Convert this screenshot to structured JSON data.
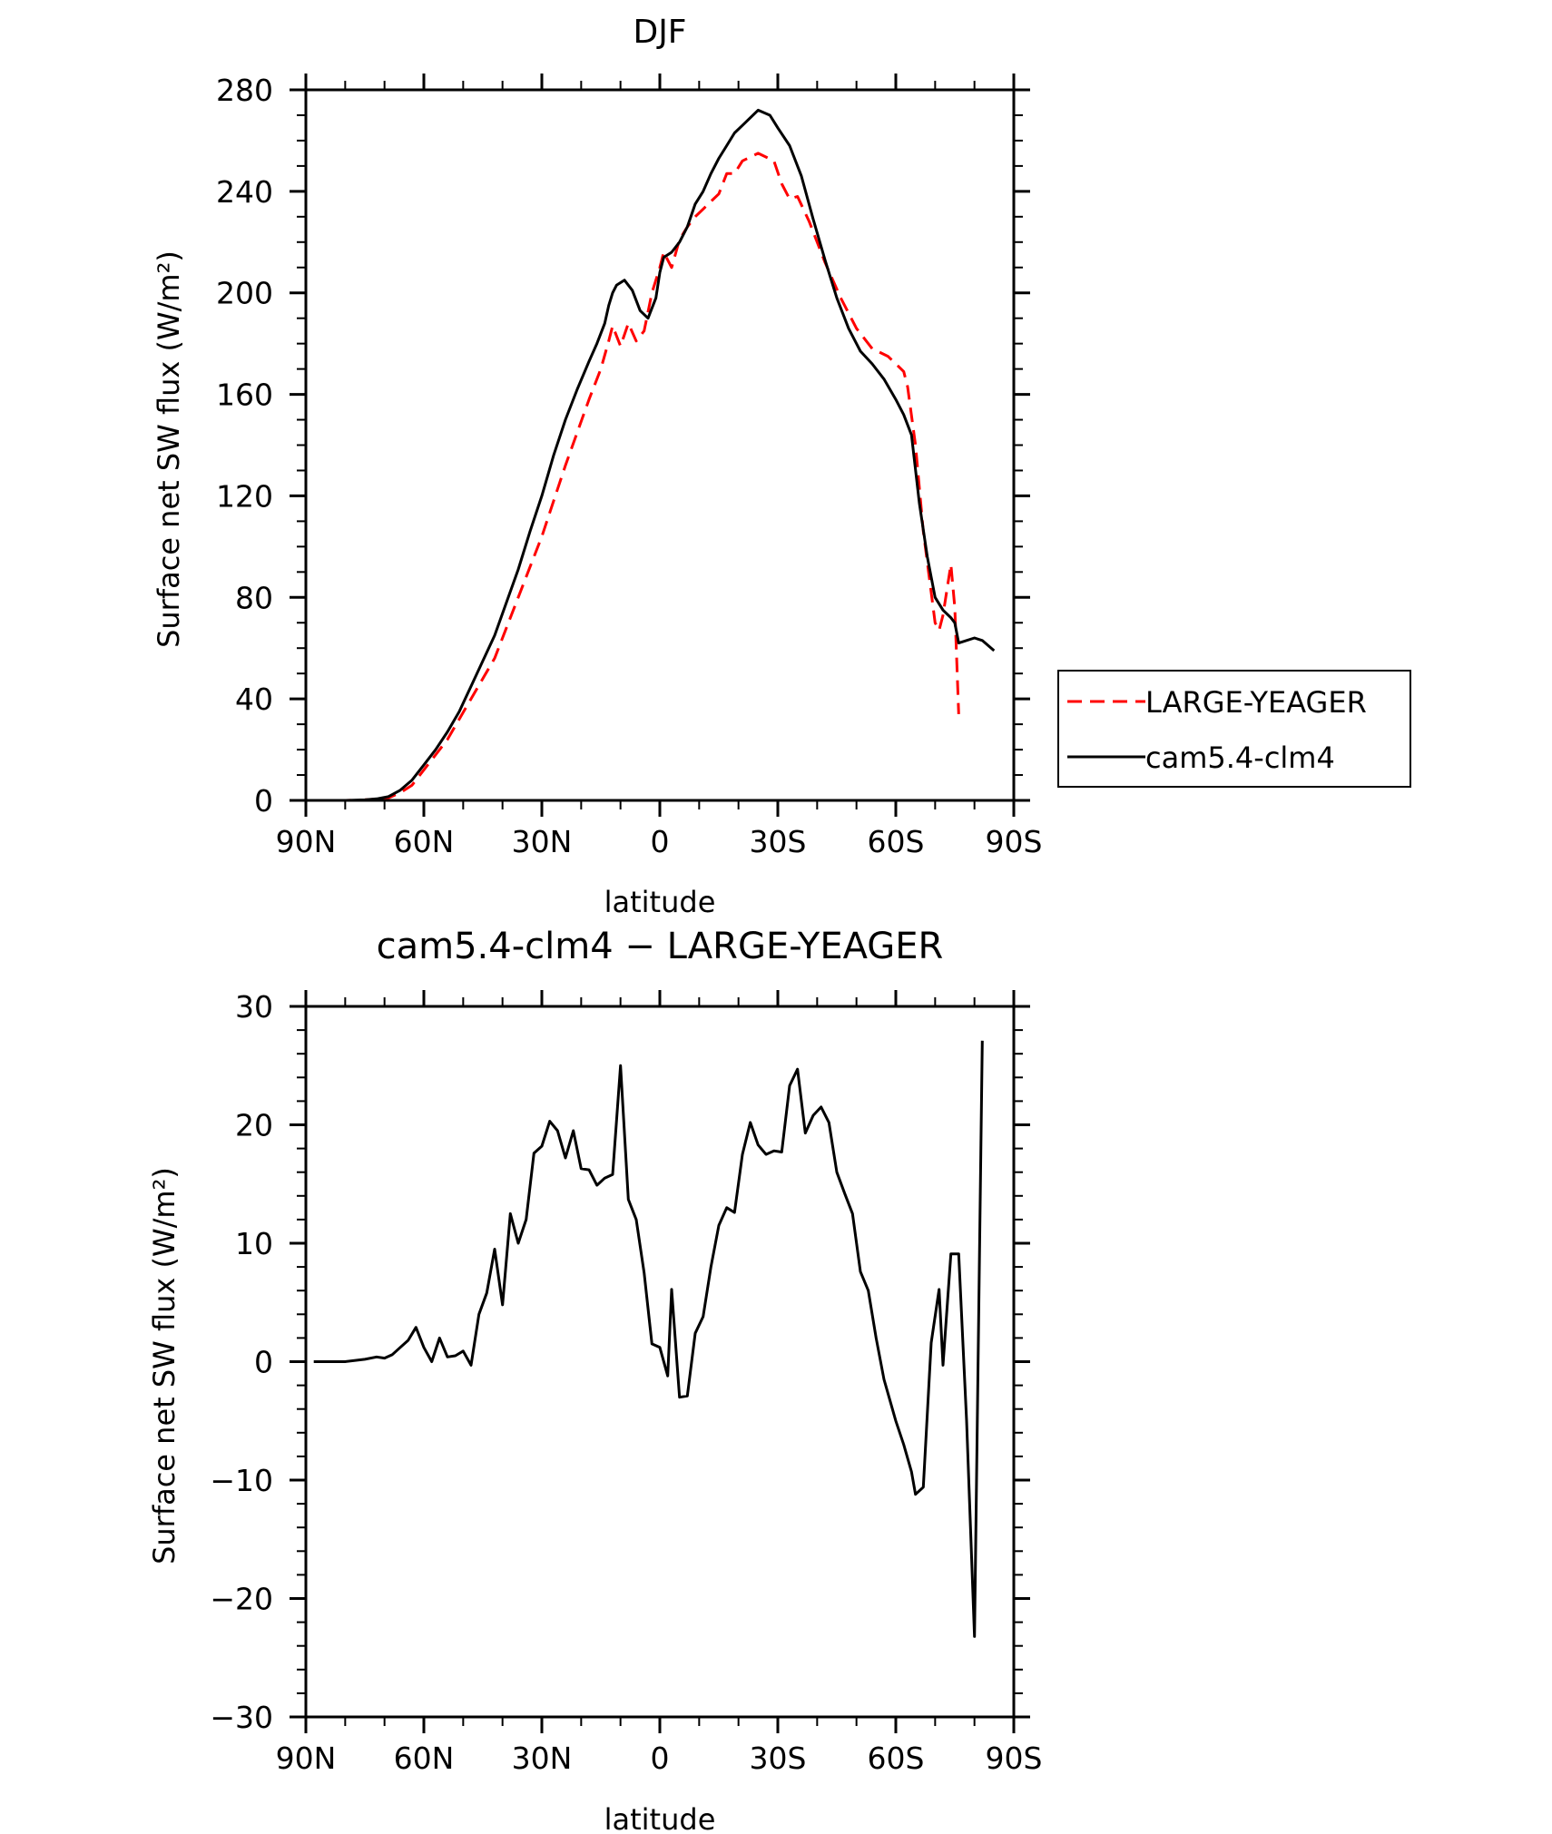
{
  "chart_data": [
    {
      "type": "line",
      "title": "DJF",
      "xlabel": "latitude",
      "ylabel": "Surface net SW flux (W/m²)",
      "xlim": [
        90,
        -90
      ],
      "ylim": [
        0,
        280
      ],
      "x_ticks": [
        {
          "value": 90,
          "label": "90N"
        },
        {
          "value": 60,
          "label": "60N"
        },
        {
          "value": 30,
          "label": "30N"
        },
        {
          "value": 0,
          "label": "0"
        },
        {
          "value": -30,
          "label": "30S"
        },
        {
          "value": -60,
          "label": "60S"
        },
        {
          "value": -90,
          "label": "90S"
        }
      ],
      "y_ticks": [
        0,
        40,
        80,
        120,
        160,
        200,
        240,
        280
      ],
      "grid": false,
      "legend": "outside-right",
      "series": [
        {
          "name": "LARGE-YEAGER",
          "color": "#ff0000",
          "style": "dashed",
          "points": [
            [
              88,
              0
            ],
            [
              80,
              0
            ],
            [
              75,
              0.2
            ],
            [
              72,
              0.5
            ],
            [
              69,
              1
            ],
            [
              66,
              3
            ],
            [
              63,
              6
            ],
            [
              60,
              12
            ],
            [
              57,
              18
            ],
            [
              54,
              24
            ],
            [
              51,
              32
            ],
            [
              48,
              40
            ],
            [
              45,
              48
            ],
            [
              42,
              56
            ],
            [
              39,
              68
            ],
            [
              36,
              80
            ],
            [
              33,
              92
            ],
            [
              30,
              104
            ],
            [
              27,
              118
            ],
            [
              24,
              132
            ],
            [
              21,
              145
            ],
            [
              18,
              158
            ],
            [
              15,
              170
            ],
            [
              13,
              181
            ],
            [
              12,
              187
            ],
            [
              10,
              179
            ],
            [
              8,
              188
            ],
            [
              6,
              181
            ],
            [
              4,
              185
            ],
            [
              2,
              200
            ],
            [
              0,
              210
            ],
            [
              -1,
              216
            ],
            [
              -3,
              210
            ],
            [
              -5,
              221
            ],
            [
              -7,
              226
            ],
            [
              -9,
              230
            ],
            [
              -11,
              233
            ],
            [
              -13,
              236
            ],
            [
              -15,
              239
            ],
            [
              -17,
              247
            ],
            [
              -19,
              247
            ],
            [
              -21,
              252
            ],
            [
              -25,
              255
            ],
            [
              -29,
              252
            ],
            [
              -31,
              243
            ],
            [
              -33,
              237
            ],
            [
              -35,
              238
            ],
            [
              -38,
              228
            ],
            [
              -42,
              212
            ],
            [
              -46,
              198
            ],
            [
              -50,
              186
            ],
            [
              -54,
              178
            ],
            [
              -58,
              175
            ],
            [
              -62,
              169
            ],
            [
              -63,
              163
            ],
            [
              -65,
              140
            ],
            [
              -67,
              106
            ],
            [
              -69,
              82
            ],
            [
              -70,
              70
            ],
            [
              -71,
              67
            ],
            [
              -72,
              73
            ],
            [
              -74,
              93
            ],
            [
              -75,
              76
            ],
            [
              -76,
              34
            ]
          ]
        },
        {
          "name": "cam5.4-clm4",
          "color": "#000000",
          "style": "solid",
          "points": [
            [
              88,
              0
            ],
            [
              80,
              0
            ],
            [
              75,
              0.2
            ],
            [
              72,
              0.6
            ],
            [
              69,
              1.5
            ],
            [
              66,
              4
            ],
            [
              63,
              8
            ],
            [
              60,
              14
            ],
            [
              57,
              20
            ],
            [
              54,
              27
            ],
            [
              51,
              35
            ],
            [
              48,
              45
            ],
            [
              45,
              55
            ],
            [
              42,
              65
            ],
            [
              39,
              78
            ],
            [
              36,
              91
            ],
            [
              33,
              106
            ],
            [
              30,
              120
            ],
            [
              27,
              136
            ],
            [
              24,
              150
            ],
            [
              21,
              162
            ],
            [
              18,
              173
            ],
            [
              16,
              180
            ],
            [
              14,
              188
            ],
            [
              13,
              195
            ],
            [
              12,
              200
            ],
            [
              11,
              203
            ],
            [
              9,
              205
            ],
            [
              7,
              201
            ],
            [
              5,
              193
            ],
            [
              3,
              190
            ],
            [
              1,
              198
            ],
            [
              0,
              208
            ],
            [
              -1,
              214
            ],
            [
              -3,
              216
            ],
            [
              -5,
              220
            ],
            [
              -7,
              226
            ],
            [
              -9,
              235
            ],
            [
              -11,
              240
            ],
            [
              -13,
              247
            ],
            [
              -15,
              253
            ],
            [
              -17,
              258
            ],
            [
              -19,
              263
            ],
            [
              -21,
              266
            ],
            [
              -25,
              272
            ],
            [
              -28,
              270
            ],
            [
              -30,
              265
            ],
            [
              -33,
              258
            ],
            [
              -36,
              246
            ],
            [
              -39,
              229
            ],
            [
              -42,
              213
            ],
            [
              -45,
              198
            ],
            [
              -48,
              186
            ],
            [
              -51,
              177
            ],
            [
              -54,
              172
            ],
            [
              -57,
              166
            ],
            [
              -60,
              158
            ],
            [
              -62,
              152
            ],
            [
              -64,
              144
            ],
            [
              -66,
              117
            ],
            [
              -68,
              96
            ],
            [
              -70,
              80
            ],
            [
              -72,
              75
            ],
            [
              -74,
              72
            ],
            [
              -75,
              70
            ],
            [
              -76,
              62
            ],
            [
              -80,
              64
            ],
            [
              -82,
              63
            ],
            [
              -85,
              59
            ]
          ]
        }
      ]
    },
    {
      "type": "line",
      "title": "cam5.4-clm4 − LARGE-YEAGER",
      "xlabel": "latitude",
      "ylabel": "Surface net SW flux (W/m²)",
      "xlim": [
        90,
        -90
      ],
      "ylim": [
        -30,
        30
      ],
      "x_ticks": [
        {
          "value": 90,
          "label": "90N"
        },
        {
          "value": 60,
          "label": "60N"
        },
        {
          "value": 30,
          "label": "30N"
        },
        {
          "value": 0,
          "label": "0"
        },
        {
          "value": -30,
          "label": "30S"
        },
        {
          "value": -60,
          "label": "60S"
        },
        {
          "value": -90,
          "label": "90S"
        }
      ],
      "y_ticks": [
        -30,
        -20,
        -10,
        0,
        10,
        20,
        30
      ],
      "grid": false,
      "series": [
        {
          "color": "#000000",
          "style": "solid",
          "points": [
            [
              88,
              0
            ],
            [
              80,
              0
            ],
            [
              75,
              0.2
            ],
            [
              72,
              0.4
            ],
            [
              70,
              0.3
            ],
            [
              68,
              0.6
            ],
            [
              66,
              1.2
            ],
            [
              64,
              1.8
            ],
            [
              62,
              2.9
            ],
            [
              60,
              1.2
            ],
            [
              58,
              0
            ],
            [
              56,
              2
            ],
            [
              54,
              0.4
            ],
            [
              52,
              0.5
            ],
            [
              50,
              0.9
            ],
            [
              48,
              -0.3
            ],
            [
              46,
              4
            ],
            [
              44,
              5.8
            ],
            [
              42,
              9.5
            ],
            [
              40,
              4.8
            ],
            [
              38,
              12.5
            ],
            [
              36,
              10
            ],
            [
              34,
              12
            ],
            [
              32,
              17.6
            ],
            [
              30,
              18.2
            ],
            [
              28,
              20.3
            ],
            [
              26,
              19.5
            ],
            [
              24,
              17.2
            ],
            [
              22,
              19.5
            ],
            [
              20,
              16.3
            ],
            [
              18,
              16.2
            ],
            [
              16,
              14.9
            ],
            [
              14,
              15.5
            ],
            [
              12,
              15.8
            ],
            [
              10,
              25
            ],
            [
              8,
              13.7
            ],
            [
              6,
              12
            ],
            [
              4,
              7.5
            ],
            [
              2,
              1.5
            ],
            [
              0,
              1.2
            ],
            [
              -2,
              -1.2
            ],
            [
              -3,
              6.1
            ],
            [
              -5,
              -3
            ],
            [
              -7,
              -2.9
            ],
            [
              -9,
              2.4
            ],
            [
              -11,
              3.8
            ],
            [
              -13,
              8
            ],
            [
              -15,
              11.5
            ],
            [
              -17,
              13
            ],
            [
              -19,
              12.6
            ],
            [
              -21,
              17.5
            ],
            [
              -23,
              20.2
            ],
            [
              -25,
              18.3
            ],
            [
              -27,
              17.5
            ],
            [
              -29,
              17.8
            ],
            [
              -31,
              17.7
            ],
            [
              -33,
              23.3
            ],
            [
              -35,
              24.7
            ],
            [
              -37,
              19.3
            ],
            [
              -39,
              20.8
            ],
            [
              -41,
              21.5
            ],
            [
              -43,
              20.2
            ],
            [
              -45,
              16
            ],
            [
              -47,
              14.2
            ],
            [
              -49,
              12.5
            ],
            [
              -51,
              7.6
            ],
            [
              -53,
              6
            ],
            [
              -55,
              2
            ],
            [
              -57,
              -1.5
            ],
            [
              -60,
              -5
            ],
            [
              -62,
              -7
            ],
            [
              -64,
              -9.3
            ],
            [
              -65,
              -11.2
            ],
            [
              -67,
              -10.6
            ],
            [
              -69,
              1.6
            ],
            [
              -71,
              6.1
            ],
            [
              -72,
              -0.3
            ],
            [
              -74,
              9.1
            ],
            [
              -76,
              9.1
            ],
            [
              -78,
              -5
            ],
            [
              -80,
              -23.2
            ],
            [
              -82,
              27.1
            ]
          ]
        }
      ]
    }
  ]
}
